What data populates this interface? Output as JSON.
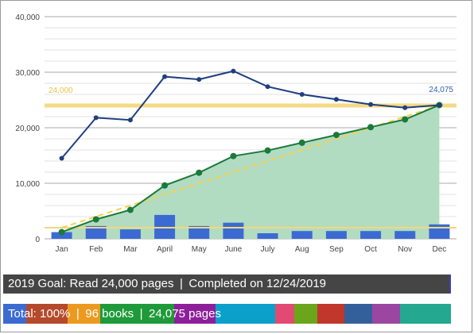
{
  "chart_data": {
    "type": "line",
    "categories": [
      "Jan",
      "Feb",
      "Mar",
      "April",
      "May",
      "June",
      "July",
      "Aug",
      "Sep",
      "Oct",
      "Nov",
      "Dec"
    ],
    "ylim": [
      0,
      40000
    ],
    "yticks": [
      0,
      10000,
      20000,
      30000,
      40000
    ],
    "ytick_labels": [
      "0",
      "10,000",
      "20,000",
      "30,000",
      "40,000"
    ],
    "grid": true,
    "series": [
      {
        "type": "line",
        "color": "#1f3f7f",
        "values": [
          14500,
          21800,
          21400,
          29200,
          28700,
          30200,
          27400,
          26000,
          25100,
          24200,
          23600,
          24075
        ]
      },
      {
        "type": "area",
        "color": "#1a7a3a",
        "fill": "#b2dcc1",
        "values": [
          1200,
          3500,
          5200,
          9600,
          11900,
          14900,
          15900,
          17300,
          18700,
          20100,
          21500,
          24075
        ]
      },
      {
        "type": "bar",
        "color": "#3b6bd2",
        "values": [
          1200,
          2300,
          1700,
          4300,
          2300,
          2900,
          1000,
          1400,
          1400,
          1400,
          1400,
          2600
        ]
      },
      {
        "type": "dashed-line",
        "color": "#f5d24a",
        "values": [
          2000,
          4000,
          6000,
          8000,
          10000,
          12000,
          14000,
          16000,
          18000,
          20000,
          22000,
          24000
        ]
      }
    ],
    "reference_lines": [
      {
        "value": 24000,
        "label": "24,000",
        "color": "#f5d77a"
      },
      {
        "value": 2000,
        "label": "",
        "color": "#f5d77a"
      }
    ],
    "annotations": [
      {
        "text": "24,000",
        "color": "#e8c24a"
      },
      {
        "text": "24,075",
        "color": "#2f5fb3"
      }
    ]
  },
  "summary": {
    "goal_text": "2019 Goal: Read 24,000 pages | Completed on 12/24/2019",
    "total_text": "Total: 100% | 96 books | 24,075 pages",
    "colors": [
      "#3b6bd2",
      "#b5492b",
      "#ec9a1f",
      "#1f9a3a",
      "#8e1f9a",
      "#0aa0c9",
      "#e24a74",
      "#6aa51c",
      "#c1372b",
      "#33609a",
      "#9b46a0",
      "#24a890"
    ],
    "shares": [
      5,
      9,
      7,
      16,
      9,
      13,
      4,
      5,
      6,
      6,
      6,
      11
    ]
  }
}
